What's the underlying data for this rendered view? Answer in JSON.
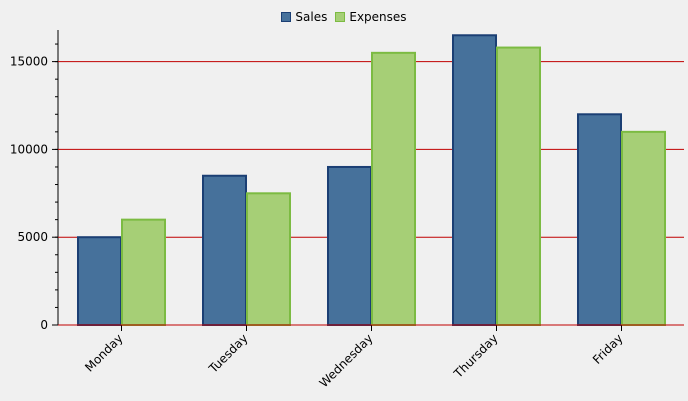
{
  "chart_data": {
    "type": "bar",
    "title": "",
    "xlabel": "",
    "ylabel": "",
    "categories": [
      "Monday",
      "Tuesday",
      "Wednesday",
      "Thursday",
      "Friday"
    ],
    "series": [
      {
        "name": "Sales",
        "values": [
          5000,
          8500,
          9000,
          16500,
          12000
        ],
        "fill": "#46719b",
        "stroke": "#1b3f74"
      },
      {
        "name": "Expenses",
        "values": [
          6000,
          7500,
          15500,
          15800,
          11000
        ],
        "fill": "#a6cf76",
        "stroke": "#7cbb42"
      }
    ],
    "ylim": [
      0,
      16800
    ],
    "yticks": [
      0,
      5000,
      10000,
      15000
    ],
    "ytick_labels": [
      "0",
      "5000",
      "10000",
      "15000"
    ],
    "grid": "horizontal",
    "grid_color": "#c00000",
    "legend": "top-center"
  }
}
